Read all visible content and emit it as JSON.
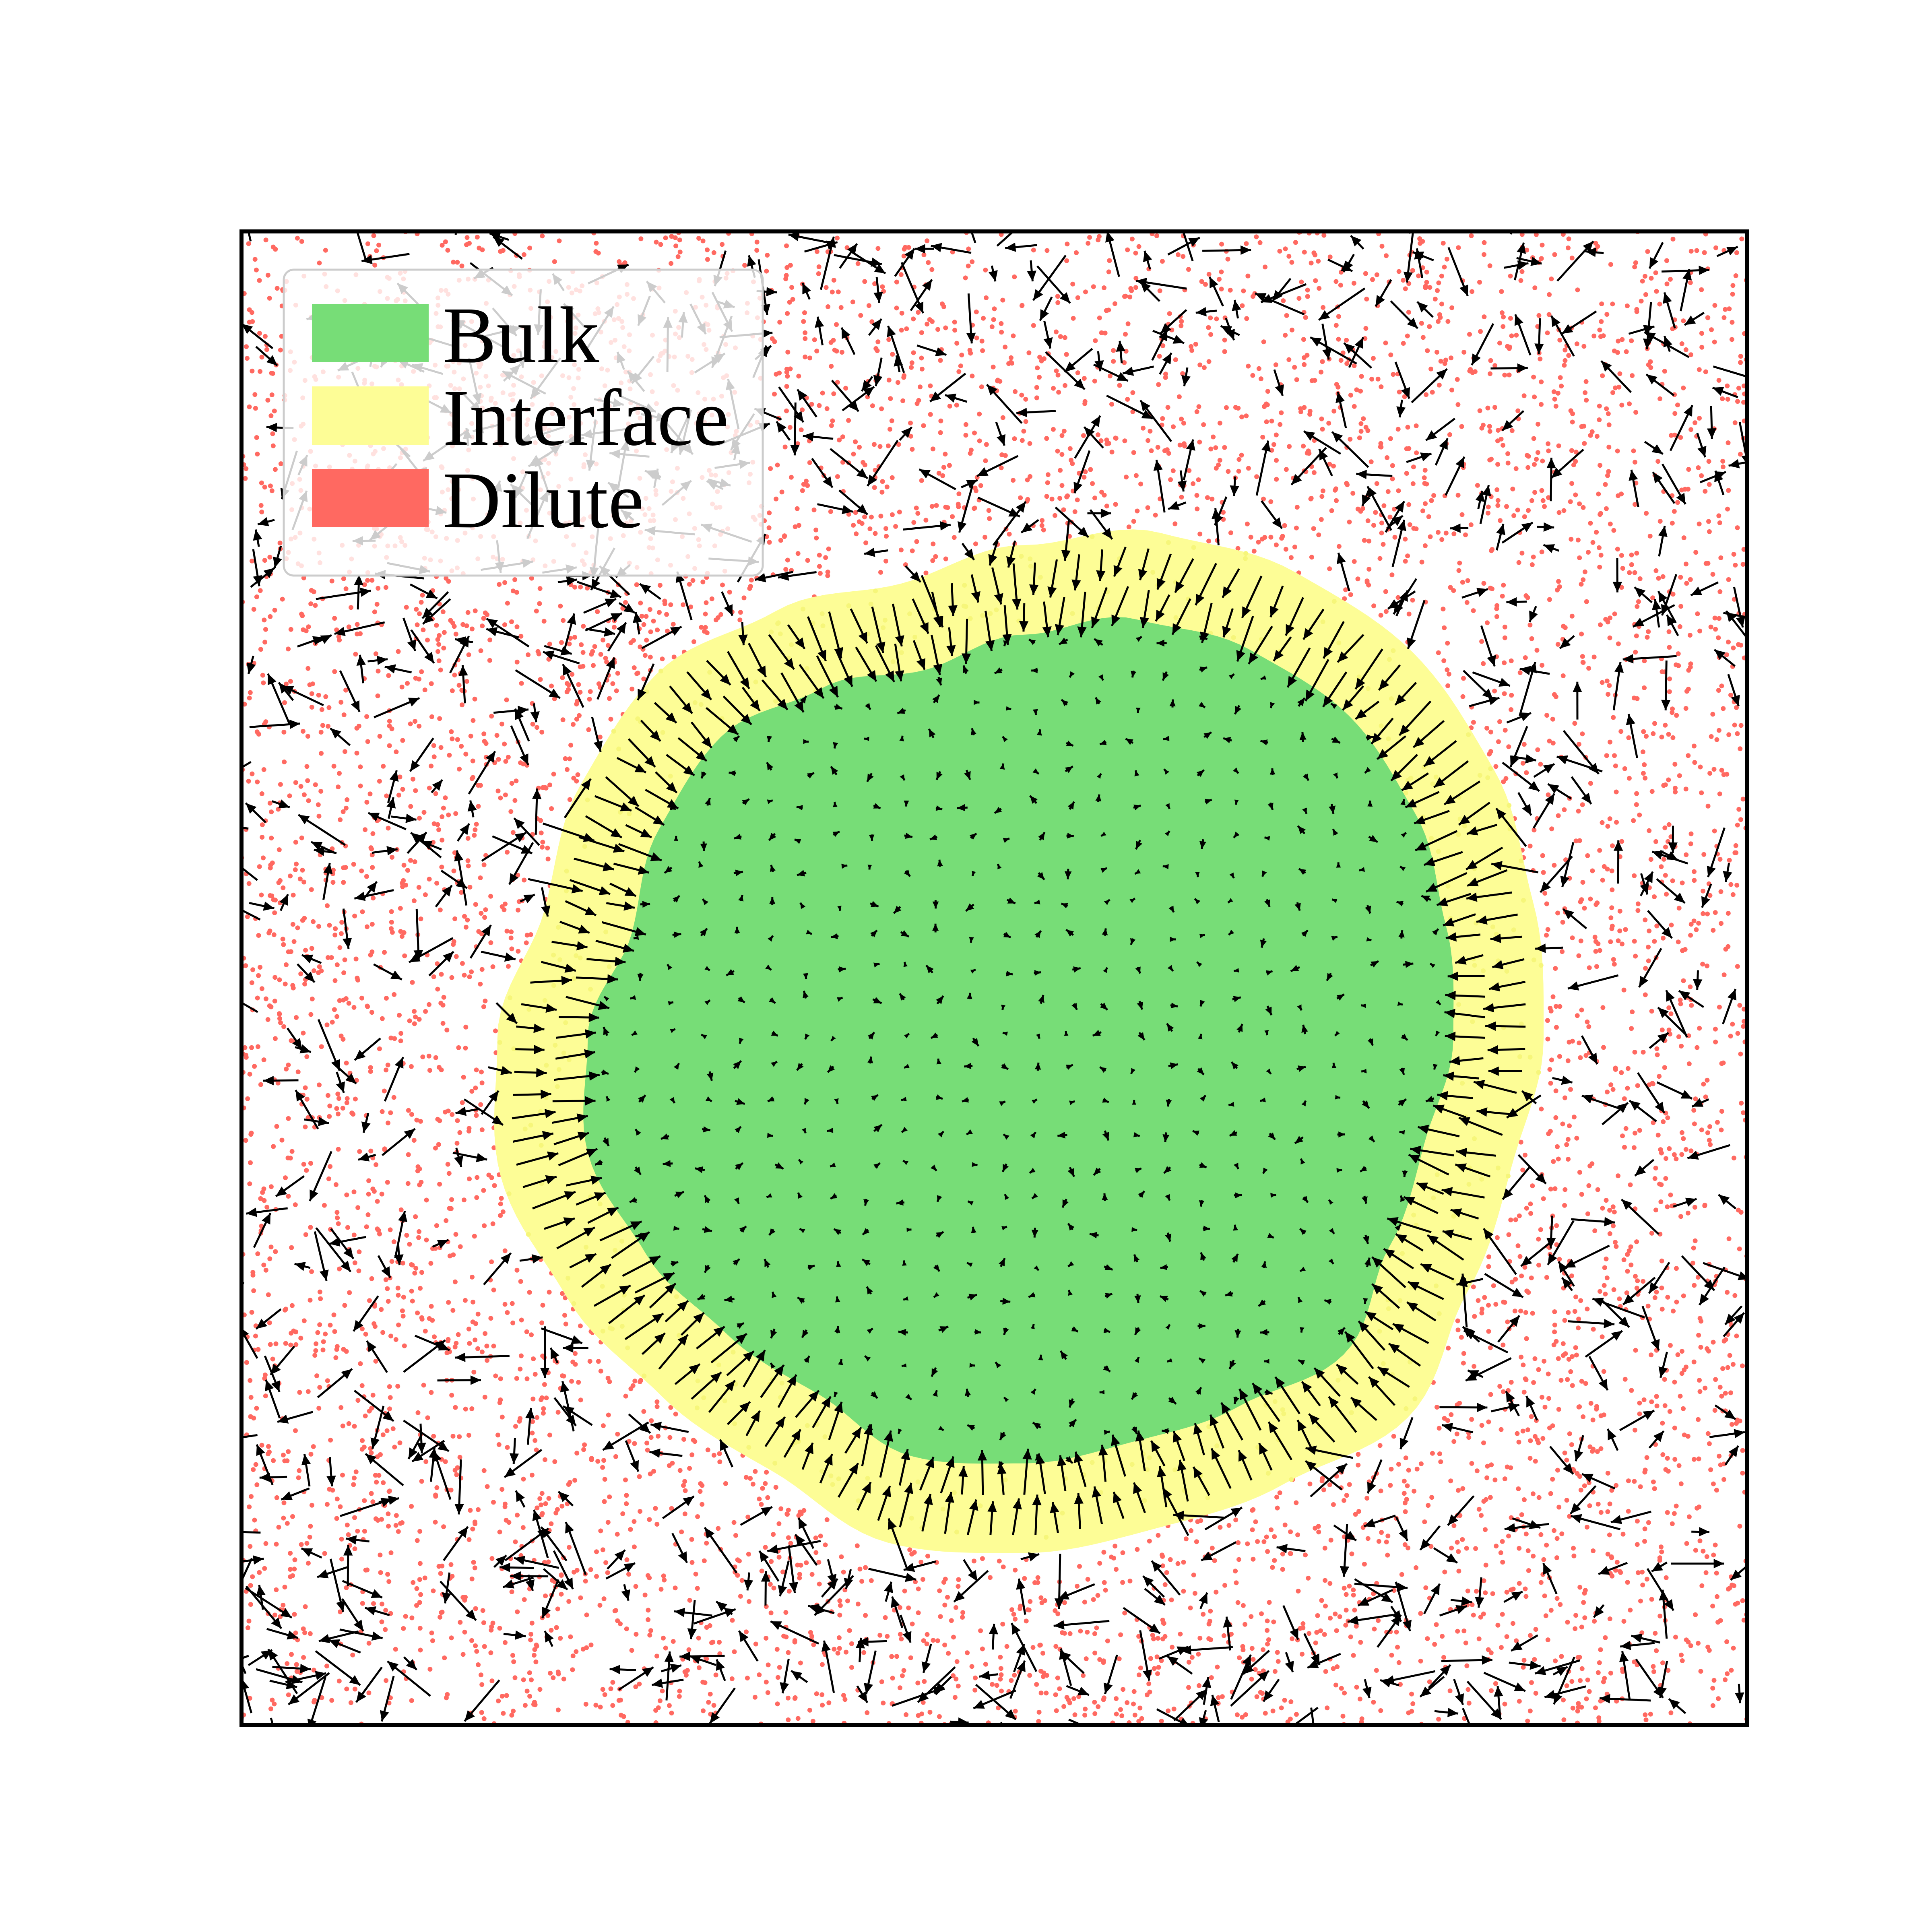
{
  "chart_data": {
    "type": "scatter",
    "title": "",
    "xlabel": "",
    "ylabel": "",
    "xlim": [
      0,
      1
    ],
    "ylim": [
      0,
      1
    ],
    "axes_ticks": "none",
    "legend_position": "top-left",
    "series": [
      {
        "name": "Bulk",
        "color": "#77dd77",
        "description": "dense droplet region"
      },
      {
        "name": "Interface",
        "color": "#fdfd96",
        "description": "ring around the droplet"
      },
      {
        "name": "Dilute",
        "color": "#ff6961",
        "description": "scattered particles outside the droplet"
      }
    ],
    "droplet": {
      "center": [
        0.52,
        0.46
      ],
      "bulk_radius_profile": [
        0.285,
        0.29,
        0.3,
        0.305,
        0.3,
        0.29,
        0.27,
        0.255,
        0.27,
        0.285,
        0.28,
        0.27,
        0.29,
        0.3,
        0.29,
        0.28,
        0.275,
        0.29,
        0.285,
        0.28,
        0.285,
        0.3,
        0.28,
        0.275
      ],
      "interface_width": 0.06
    },
    "vector_field": {
      "bulk_arrows": "short, nearly random",
      "interface_arrows": "long, pointing radially inward",
      "dilute_arrows": "medium length, random orientation"
    }
  }
}
